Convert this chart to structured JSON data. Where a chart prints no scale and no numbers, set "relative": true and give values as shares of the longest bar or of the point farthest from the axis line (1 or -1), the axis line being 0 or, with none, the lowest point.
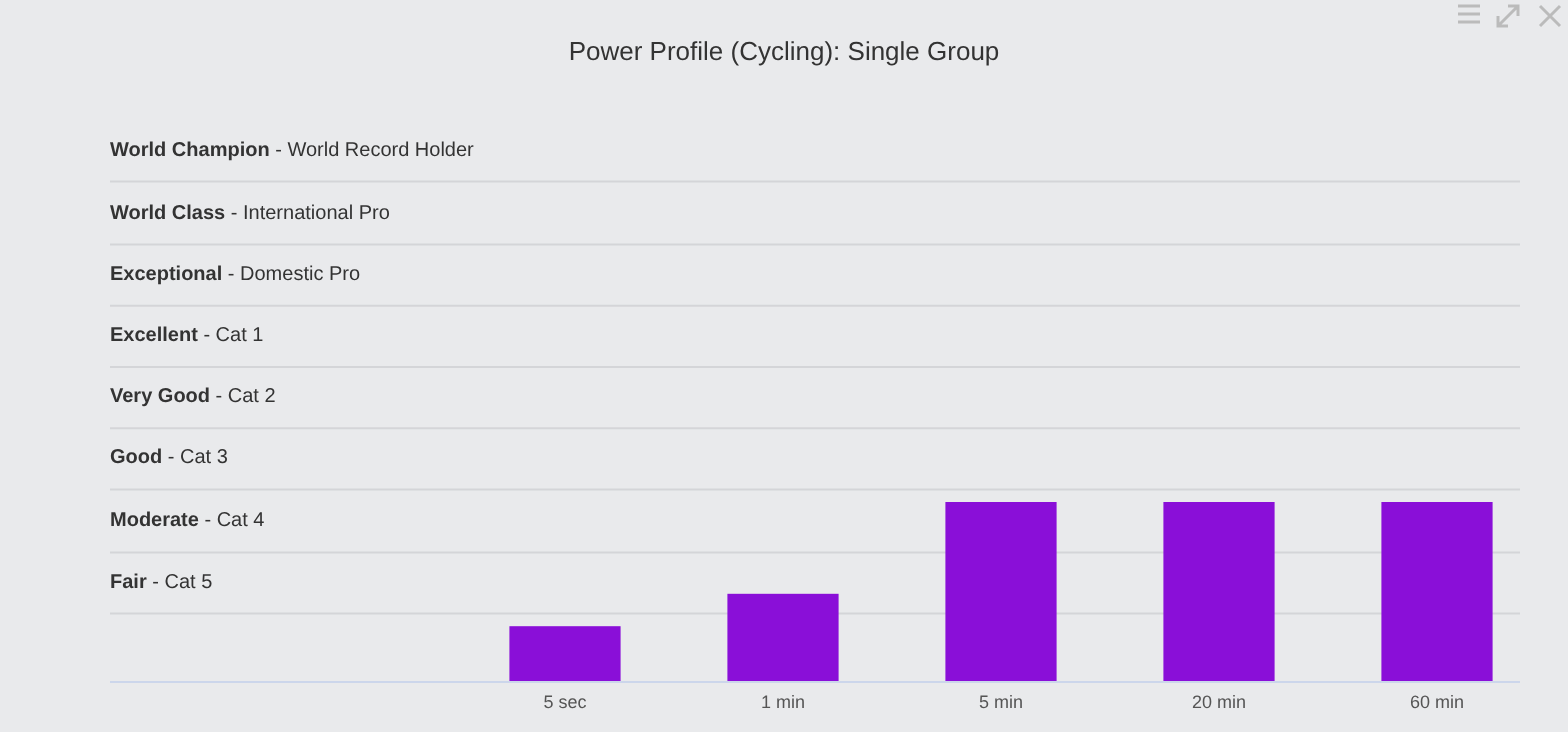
{
  "chart_data": {
    "type": "bar",
    "title": "Power Profile (Cycling): Single Group",
    "categories": [
      "5 sec",
      "1 min",
      "5 min",
      "20 min",
      "60 min"
    ],
    "values": [
      0.31,
      0.49,
      1,
      1,
      1
    ],
    "color": "#8a0fd8",
    "relative": true,
    "ref_lines": [
      {
        "axis": "y",
        "value": 2.78,
        "label": "World Champion - World Record Holder"
      },
      {
        "axis": "y",
        "value": 2.43,
        "label": "World Class - International Pro"
      },
      {
        "axis": "y",
        "value": 2.09,
        "label": "Exceptional - Domestic Pro"
      },
      {
        "axis": "y",
        "value": 1.75,
        "label": "Excellent - Cat 1"
      },
      {
        "axis": "y",
        "value": 1.41,
        "label": "Very Good - Cat 2"
      },
      {
        "axis": "y",
        "value": 1.07,
        "label": "Good - Cat 3"
      },
      {
        "axis": "y",
        "value": 0.72,
        "label": "Moderate - Cat 4"
      },
      {
        "axis": "y",
        "value": 0.38,
        "label": "Fair - Cat 5"
      }
    ]
  }
}
